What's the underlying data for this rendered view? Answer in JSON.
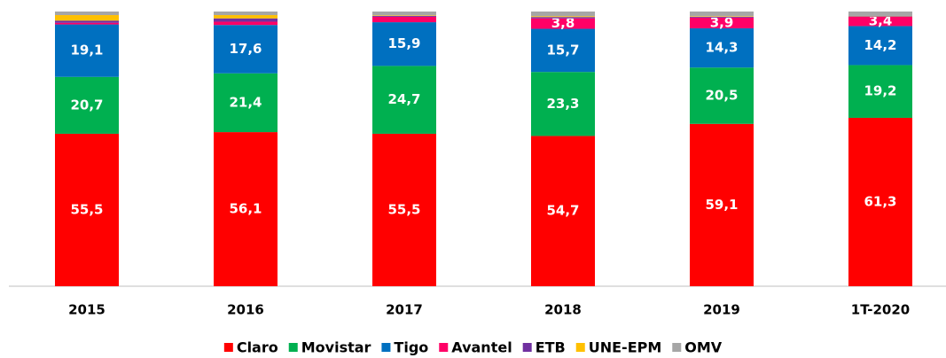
{
  "chart_data": {
    "type": "stacked_bar",
    "categories": [
      "2015",
      "2016",
      "2017",
      "2018",
      "2019",
      "1T-2020"
    ],
    "ylim": [
      0,
      100
    ],
    "series": [
      {
        "name": "Claro",
        "color": "#ff0000",
        "values": [
          55.5,
          56.1,
          55.5,
          54.7,
          59.1,
          61.3
        ],
        "value_labels": [
          "55,5",
          "56,1",
          "55,5",
          "54,7",
          "59,1",
          "61,3"
        ]
      },
      {
        "name": "Movistar",
        "color": "#00b050",
        "values": [
          20.7,
          21.4,
          24.7,
          23.3,
          20.5,
          19.2
        ],
        "value_labels": [
          "20,7",
          "21,4",
          "24,7",
          "23,3",
          "20,5",
          "19,2"
        ]
      },
      {
        "name": "Tigo",
        "color": "#0070c0",
        "values": [
          19.1,
          17.6,
          15.9,
          15.7,
          14.3,
          14.2
        ],
        "value_labels": [
          "19,1",
          "17,6",
          "15,9",
          "15,7",
          "14,3",
          "14,2"
        ]
      },
      {
        "name": "Avantel",
        "color": "#ff0066",
        "values": [
          0.6,
          1.2,
          2.0,
          3.8,
          3.9,
          3.4
        ],
        "value_labels": [
          null,
          null,
          null,
          "3,8",
          "3,9",
          "3,4"
        ]
      },
      {
        "name": "ETB",
        "color": "#7030a0",
        "values": [
          0.8,
          1.2,
          0.3,
          0.5,
          0.3,
          0.2
        ]
      },
      {
        "name": "UNE-EPM",
        "color": "#ffc000",
        "values": [
          2.0,
          1.2,
          0.2,
          0.3,
          0.2,
          0.1
        ]
      },
      {
        "name": "OMV",
        "color": "#a6a6a6",
        "values": [
          1.3,
          1.3,
          1.4,
          1.7,
          1.7,
          1.6
        ]
      }
    ]
  }
}
